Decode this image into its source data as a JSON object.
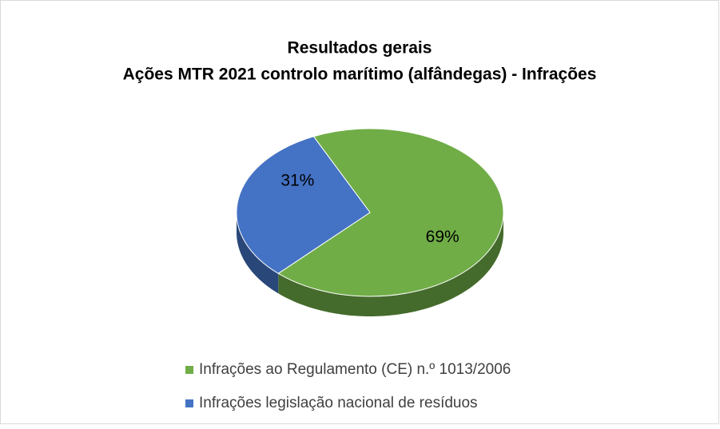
{
  "chart_data": {
    "type": "pie",
    "title": "Resultados gerais",
    "subtitle": "Ações MTR 2021 controlo marítimo (alfândegas) - Infrações",
    "categories": [
      "Infrações ao Regulamento (CE) n.º 1013/2006",
      "Infrações legislação nacional de resíduos"
    ],
    "values": [
      69,
      31
    ],
    "value_labels": [
      "69%",
      "31%"
    ],
    "colors": [
      "#70ad47",
      "#4472c4"
    ],
    "legend": "bottom"
  }
}
